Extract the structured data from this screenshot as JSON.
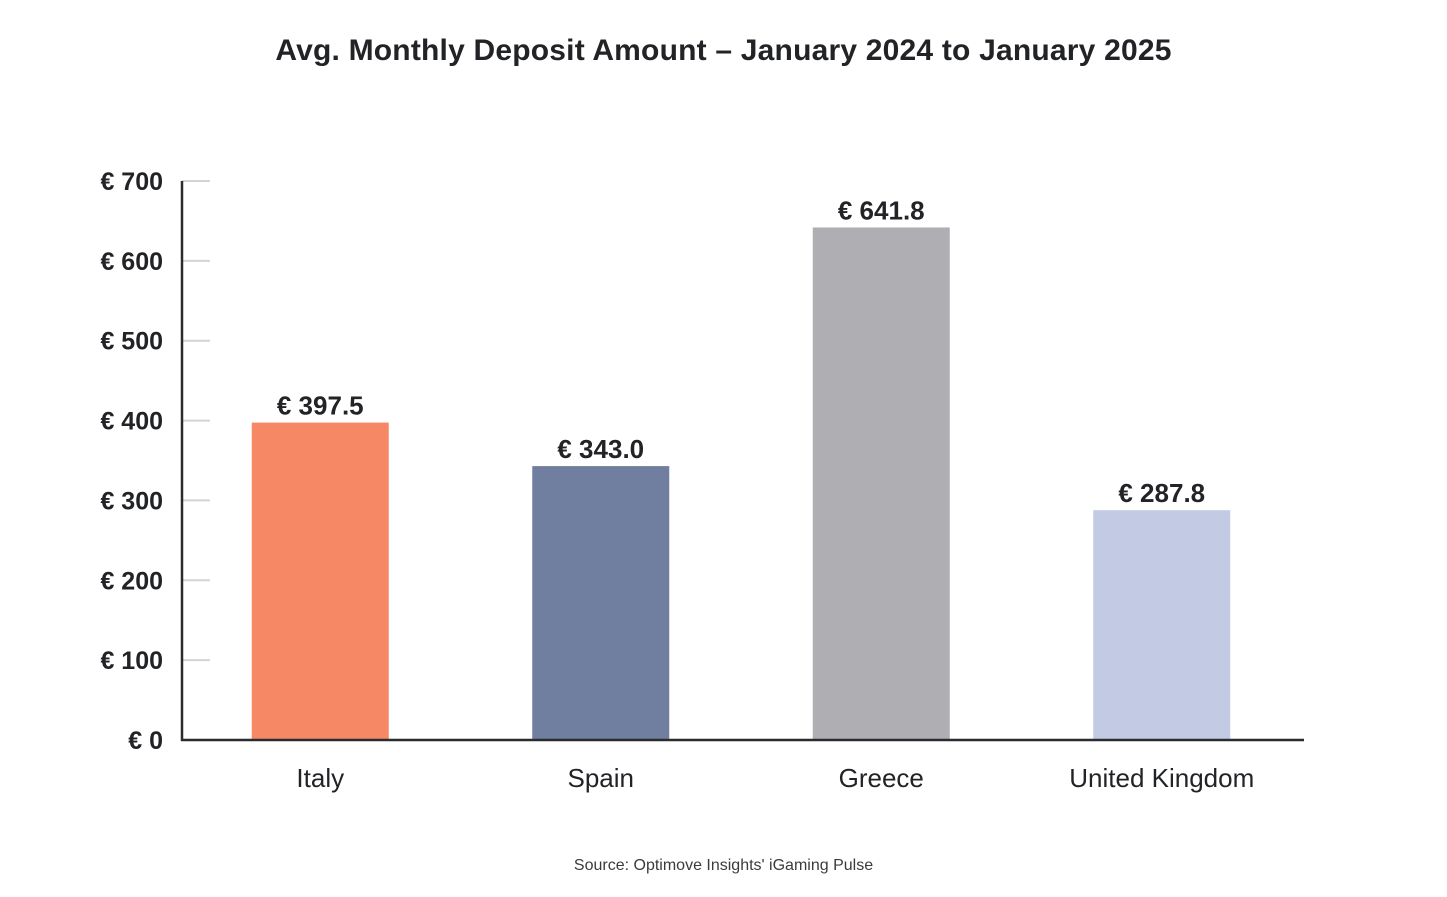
{
  "source": "Source: Optimove Insights' iGaming Pulse",
  "chart_data": {
    "type": "bar",
    "title": "Avg. Monthly Deposit Amount – January 2024 to January 2025",
    "categories": [
      "Italy",
      "Spain",
      "Greece",
      "United Kingdom"
    ],
    "values": [
      397.5,
      343.0,
      641.8,
      287.8
    ],
    "value_labels": [
      "€ 397.5",
      "€ 343.0",
      "€ 641.8",
      "€ 287.8"
    ],
    "colors": [
      "#f78866",
      "#707fa0",
      "#aeaeb3",
      "#c3cae4"
    ],
    "xlabel": "",
    "ylabel": "",
    "ylim": [
      0,
      700
    ],
    "yticks": [
      0,
      100,
      200,
      300,
      400,
      500,
      600,
      700
    ],
    "ytick_labels": [
      "€ 0",
      "€ 100",
      "€ 200",
      "€ 300",
      "€ 400",
      "€ 500",
      "€ 600",
      "€ 700"
    ],
    "grid": false,
    "legend": "none"
  }
}
